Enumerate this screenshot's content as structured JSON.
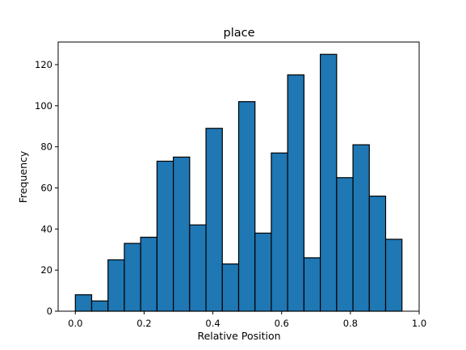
{
  "chart_data": {
    "type": "bar",
    "title": "place",
    "xlabel": "Relative Position",
    "ylabel": "Frequency",
    "xlim": [
      -0.05,
      1.0
    ],
    "ylim": [
      0,
      131
    ],
    "bin_edges": [
      0.0,
      0.0475,
      0.095,
      0.1425,
      0.19,
      0.2375,
      0.285,
      0.3325,
      0.38,
      0.4275,
      0.475,
      0.5225,
      0.57,
      0.6175,
      0.665,
      0.7125,
      0.76,
      0.8075,
      0.855,
      0.9025,
      0.95
    ],
    "values": [
      8,
      5,
      25,
      33,
      36,
      73,
      75,
      42,
      89,
      23,
      102,
      38,
      77,
      115,
      26,
      125,
      65,
      81,
      56,
      35
    ],
    "x_ticks": [
      0.0,
      0.2,
      0.4,
      0.6,
      0.8,
      1.0
    ],
    "x_tick_labels": [
      "0.0",
      "0.2",
      "0.4",
      "0.6",
      "0.8",
      "1.0"
    ],
    "y_ticks": [
      0,
      20,
      40,
      60,
      80,
      100,
      120
    ],
    "y_tick_labels": [
      "0",
      "20",
      "40",
      "60",
      "80",
      "100",
      "120"
    ],
    "bar_color": "#1f77b4",
    "edge_color": "#000000",
    "grid": false,
    "legend": "none"
  }
}
